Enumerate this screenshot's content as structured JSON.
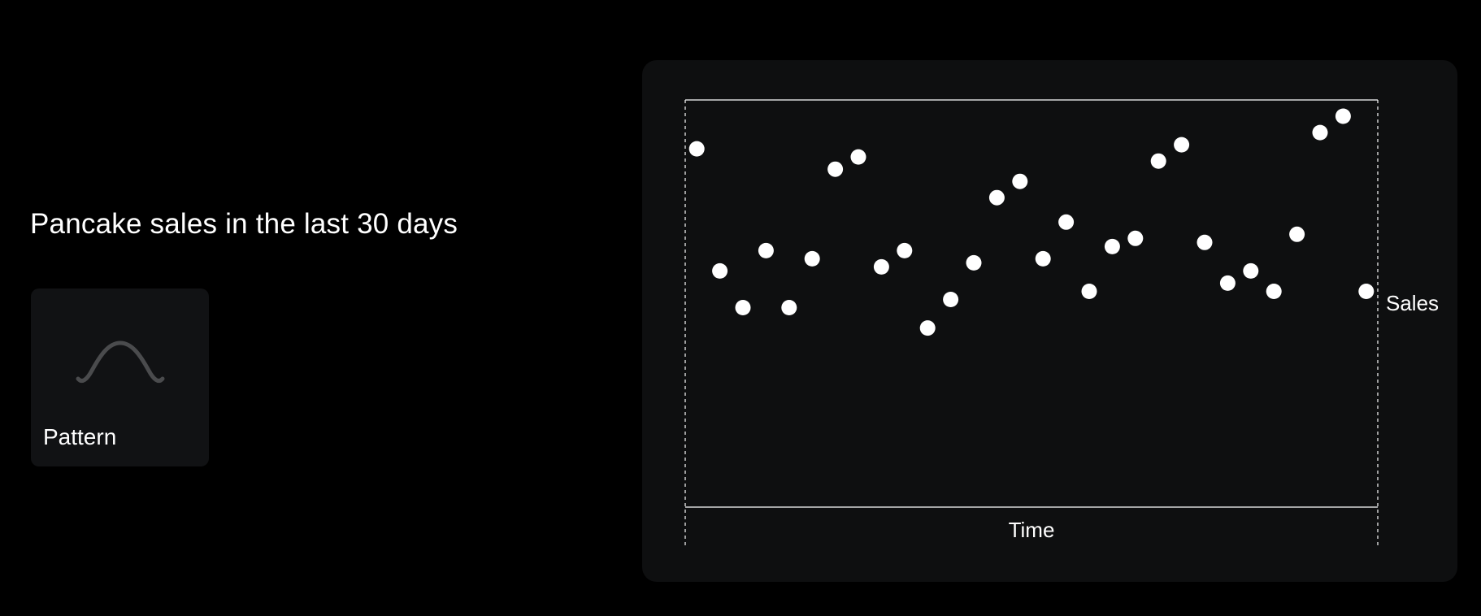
{
  "headline": "Pancake sales in the last 30 days",
  "pattern_card": {
    "label": "Pattern",
    "icon": "bell-curve-icon"
  },
  "colors": {
    "background": "#000000",
    "panel": "#0e0f10",
    "card": "#111214",
    "points": "#ffffff",
    "icon": "#4a4b4d"
  },
  "chart_data": {
    "type": "scatter",
    "title": "",
    "xlabel": "Time",
    "ylabel": "Sales",
    "grid": false,
    "legend": "none",
    "x": [
      1,
      2,
      3,
      4,
      5,
      6,
      7,
      8,
      9,
      10,
      11,
      12,
      13,
      14,
      15,
      16,
      17,
      18,
      19,
      20,
      21,
      22,
      23,
      24,
      25,
      26,
      27,
      28,
      29,
      30
    ],
    "y": [
      88,
      58,
      49,
      63,
      49,
      61,
      83,
      86,
      59,
      63,
      44,
      51,
      60,
      76,
      80,
      61,
      70,
      53,
      64,
      66,
      85,
      89,
      65,
      55,
      58,
      53,
      67,
      92,
      96,
      53
    ],
    "xlim": [
      0.5,
      30.5
    ],
    "ylim": [
      0,
      100
    ]
  }
}
